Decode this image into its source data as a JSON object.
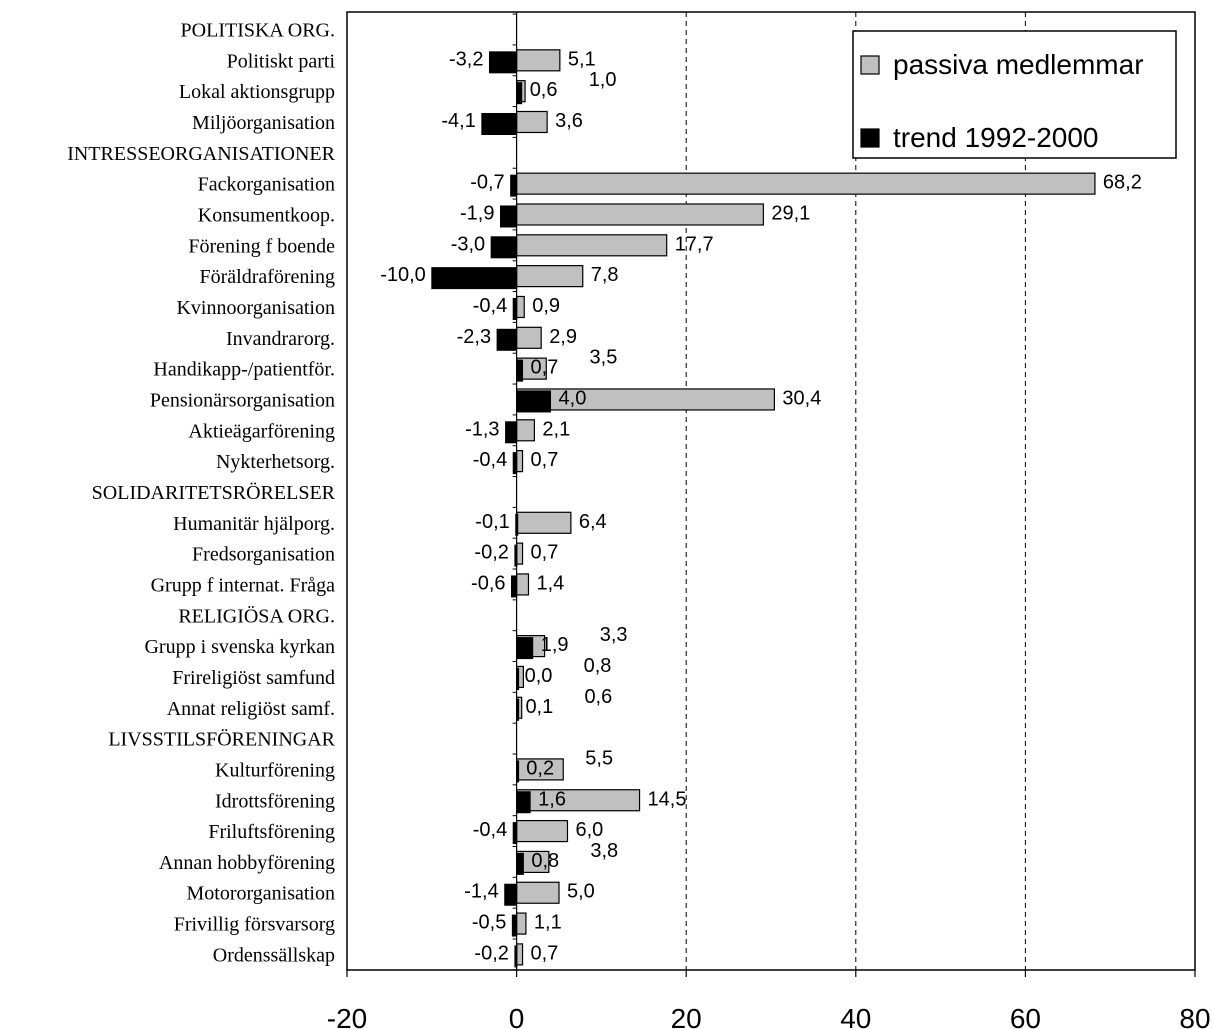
{
  "chart_data": {
    "type": "bar",
    "orientation": "horizontal",
    "xlim": [
      -20,
      80
    ],
    "x_ticks": [
      -20,
      0,
      20,
      40,
      60,
      80
    ],
    "x_tick_labels": [
      "-20",
      "0",
      "20",
      "40",
      "60",
      "80"
    ],
    "grid": "vertical dashed at 20, 40, 60",
    "legend_position": "top-right",
    "categories": [
      "POLITISKA ORG.",
      "Politiskt parti",
      "Lokal aktionsgrupp",
      "Miljöorganisation",
      "INTRESSEORGANISATIONER",
      "Fackorganisation",
      "Konsumentkoop.",
      "Förening f boende",
      "Föräldraförening",
      "Kvinnoorganisation",
      "Invandrarorg.",
      "Handikapp-/patientför.",
      "Pensionärsorganisation",
      "Aktieägarförening",
      "Nykterhetsorg.",
      "SOLIDARITETSRÖRELSER",
      "Humanitär hjälporg.",
      "Fredsorganisation",
      "Grupp f internat. Fråga",
      "RELIGIÖSA ORG.",
      "Grupp i svenska kyrkan",
      "Frireligiöst samfund",
      "Annat religiöst samf.",
      "LIVSSTILSFÖRENINGAR",
      "Kulturförening",
      "Idrottsförening",
      "Friluftsförening",
      "Annan hobbyförening",
      "Motororganisation",
      "Frivillig försvarsorg",
      "Ordenssällskap"
    ],
    "series": [
      {
        "name": "passiva medlemmar",
        "color": "#c0c0c0",
        "values": [
          null,
          5.1,
          1.0,
          3.6,
          null,
          68.2,
          29.1,
          17.7,
          7.8,
          0.9,
          2.9,
          3.5,
          30.4,
          2.1,
          0.7,
          null,
          6.4,
          0.7,
          1.4,
          null,
          3.3,
          0.8,
          0.6,
          null,
          5.5,
          14.5,
          6.0,
          3.8,
          5.0,
          1.1,
          0.7
        ],
        "labels": [
          "",
          "5,1",
          "1,0",
          "3,6",
          "",
          "68,2",
          "29,1",
          "17,7",
          "7,8",
          "0,9",
          "2,9",
          "3,5",
          "30,4",
          "2,1",
          "0,7",
          "",
          "6,4",
          "0,7",
          "1,4",
          "",
          "3,3",
          "0,8",
          "0,6",
          "",
          "5,5",
          "14,5",
          "6,0",
          "3,8",
          "5,0",
          "1,1",
          "0,7"
        ]
      },
      {
        "name": "trend 1992-2000",
        "color": "#000000",
        "values": [
          null,
          -3.2,
          0.6,
          -4.1,
          null,
          -0.7,
          -1.9,
          -3.0,
          -10.0,
          -0.4,
          -2.3,
          0.7,
          4.0,
          -1.3,
          -0.4,
          null,
          -0.1,
          -0.2,
          -0.6,
          null,
          1.9,
          0.0,
          0.1,
          null,
          0.2,
          1.6,
          -0.4,
          0.8,
          -1.4,
          -0.5,
          -0.2
        ],
        "labels": [
          "",
          "-3,2",
          "0,6",
          "-4,1",
          "",
          "-0,7",
          "-1,9",
          "-3,0",
          "-10,0",
          "-0,4",
          "-2,3",
          "0,7",
          "4,0",
          "-1,3",
          "-0,4",
          "",
          "-0,1",
          "-0,2",
          "-0,6",
          "",
          "1,9",
          "0,0",
          "0,1",
          "",
          "0,2",
          "1,6",
          "-0,4",
          "0,8",
          "-1,4",
          "-0,5",
          "-0,2"
        ]
      }
    ]
  }
}
